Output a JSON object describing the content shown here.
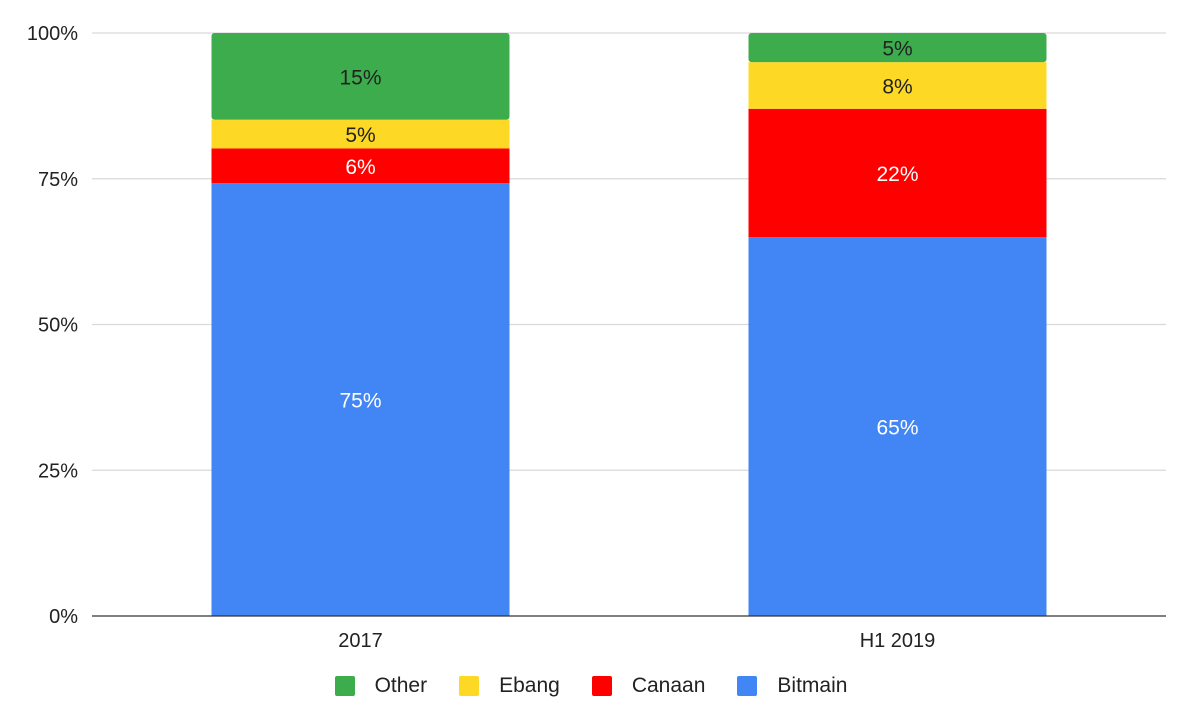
{
  "chart_data": {
    "type": "bar",
    "stacked": "percent",
    "title": "",
    "xlabel": "",
    "ylabel": "",
    "ylim": [
      0,
      100
    ],
    "y_ticks": [
      "0%",
      "25%",
      "50%",
      "75%",
      "100%"
    ],
    "y_tick_values": [
      0,
      25,
      50,
      75,
      100
    ],
    "grid": true,
    "legend_position": "bottom",
    "categories": [
      "2017",
      "H1 2019"
    ],
    "series": [
      {
        "name": "Bitmain",
        "color": "#4285f4",
        "label_color": "#ffffff",
        "values": [
          75,
          65
        ],
        "labels": [
          "75%",
          "65%"
        ]
      },
      {
        "name": "Canaan",
        "color": "#fe0000",
        "label_color": "#ffffff",
        "values": [
          6,
          22
        ],
        "labels": [
          "6%",
          "22%"
        ]
      },
      {
        "name": "Ebang",
        "color": "#fdd825",
        "label_color": "#222222",
        "values": [
          5,
          8
        ],
        "labels": [
          "5%",
          "8%"
        ]
      },
      {
        "name": "Other",
        "color": "#3cac4c",
        "label_color": "#222222",
        "values": [
          15,
          5
        ],
        "labels": [
          "15%",
          "5%"
        ]
      }
    ],
    "legend_order": [
      "Other",
      "Ebang",
      "Canaan",
      "Bitmain"
    ]
  }
}
